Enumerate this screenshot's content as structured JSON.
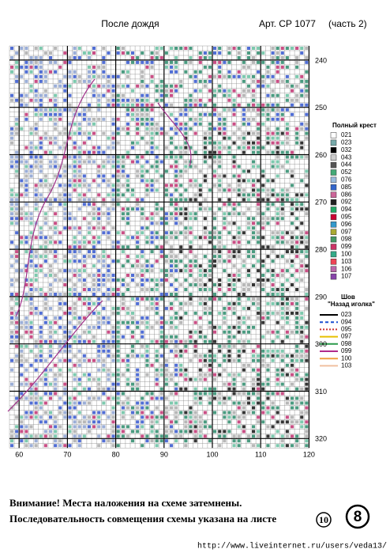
{
  "header": {
    "title": "После дождя",
    "article": "Арт. СР 1077",
    "part": "(часть 2)"
  },
  "chart": {
    "row_numbers": [
      "240",
      "250",
      "260",
      "270",
      "280",
      "290",
      "300",
      "310",
      "320"
    ],
    "column_numbers": [
      "60",
      "70",
      "80",
      "90",
      "100",
      "110",
      "120"
    ]
  },
  "legend": {
    "full_cross_title": "Полный крест",
    "full_cross": [
      "021",
      "023",
      "032",
      "043",
      "044",
      "052",
      "076",
      "085",
      "086",
      "092",
      "094",
      "095",
      "096",
      "097",
      "098",
      "099",
      "100",
      "103",
      "106",
      "107"
    ],
    "backstitch_title": "Шов",
    "backstitch_subtitle": "\"Назад иголка\"",
    "backstitch": [
      "023",
      "094",
      "095",
      "097",
      "098",
      "099",
      "100",
      "103"
    ]
  },
  "footer": {
    "line1": "Внимание! Места наложения на схеме затемнены.",
    "line2": "Последовательность совмещения схемы указана на листе",
    "sheet_ref": "10",
    "page_number": "8",
    "url": "http://www.liveinternet.ru/users/veda13/"
  }
}
